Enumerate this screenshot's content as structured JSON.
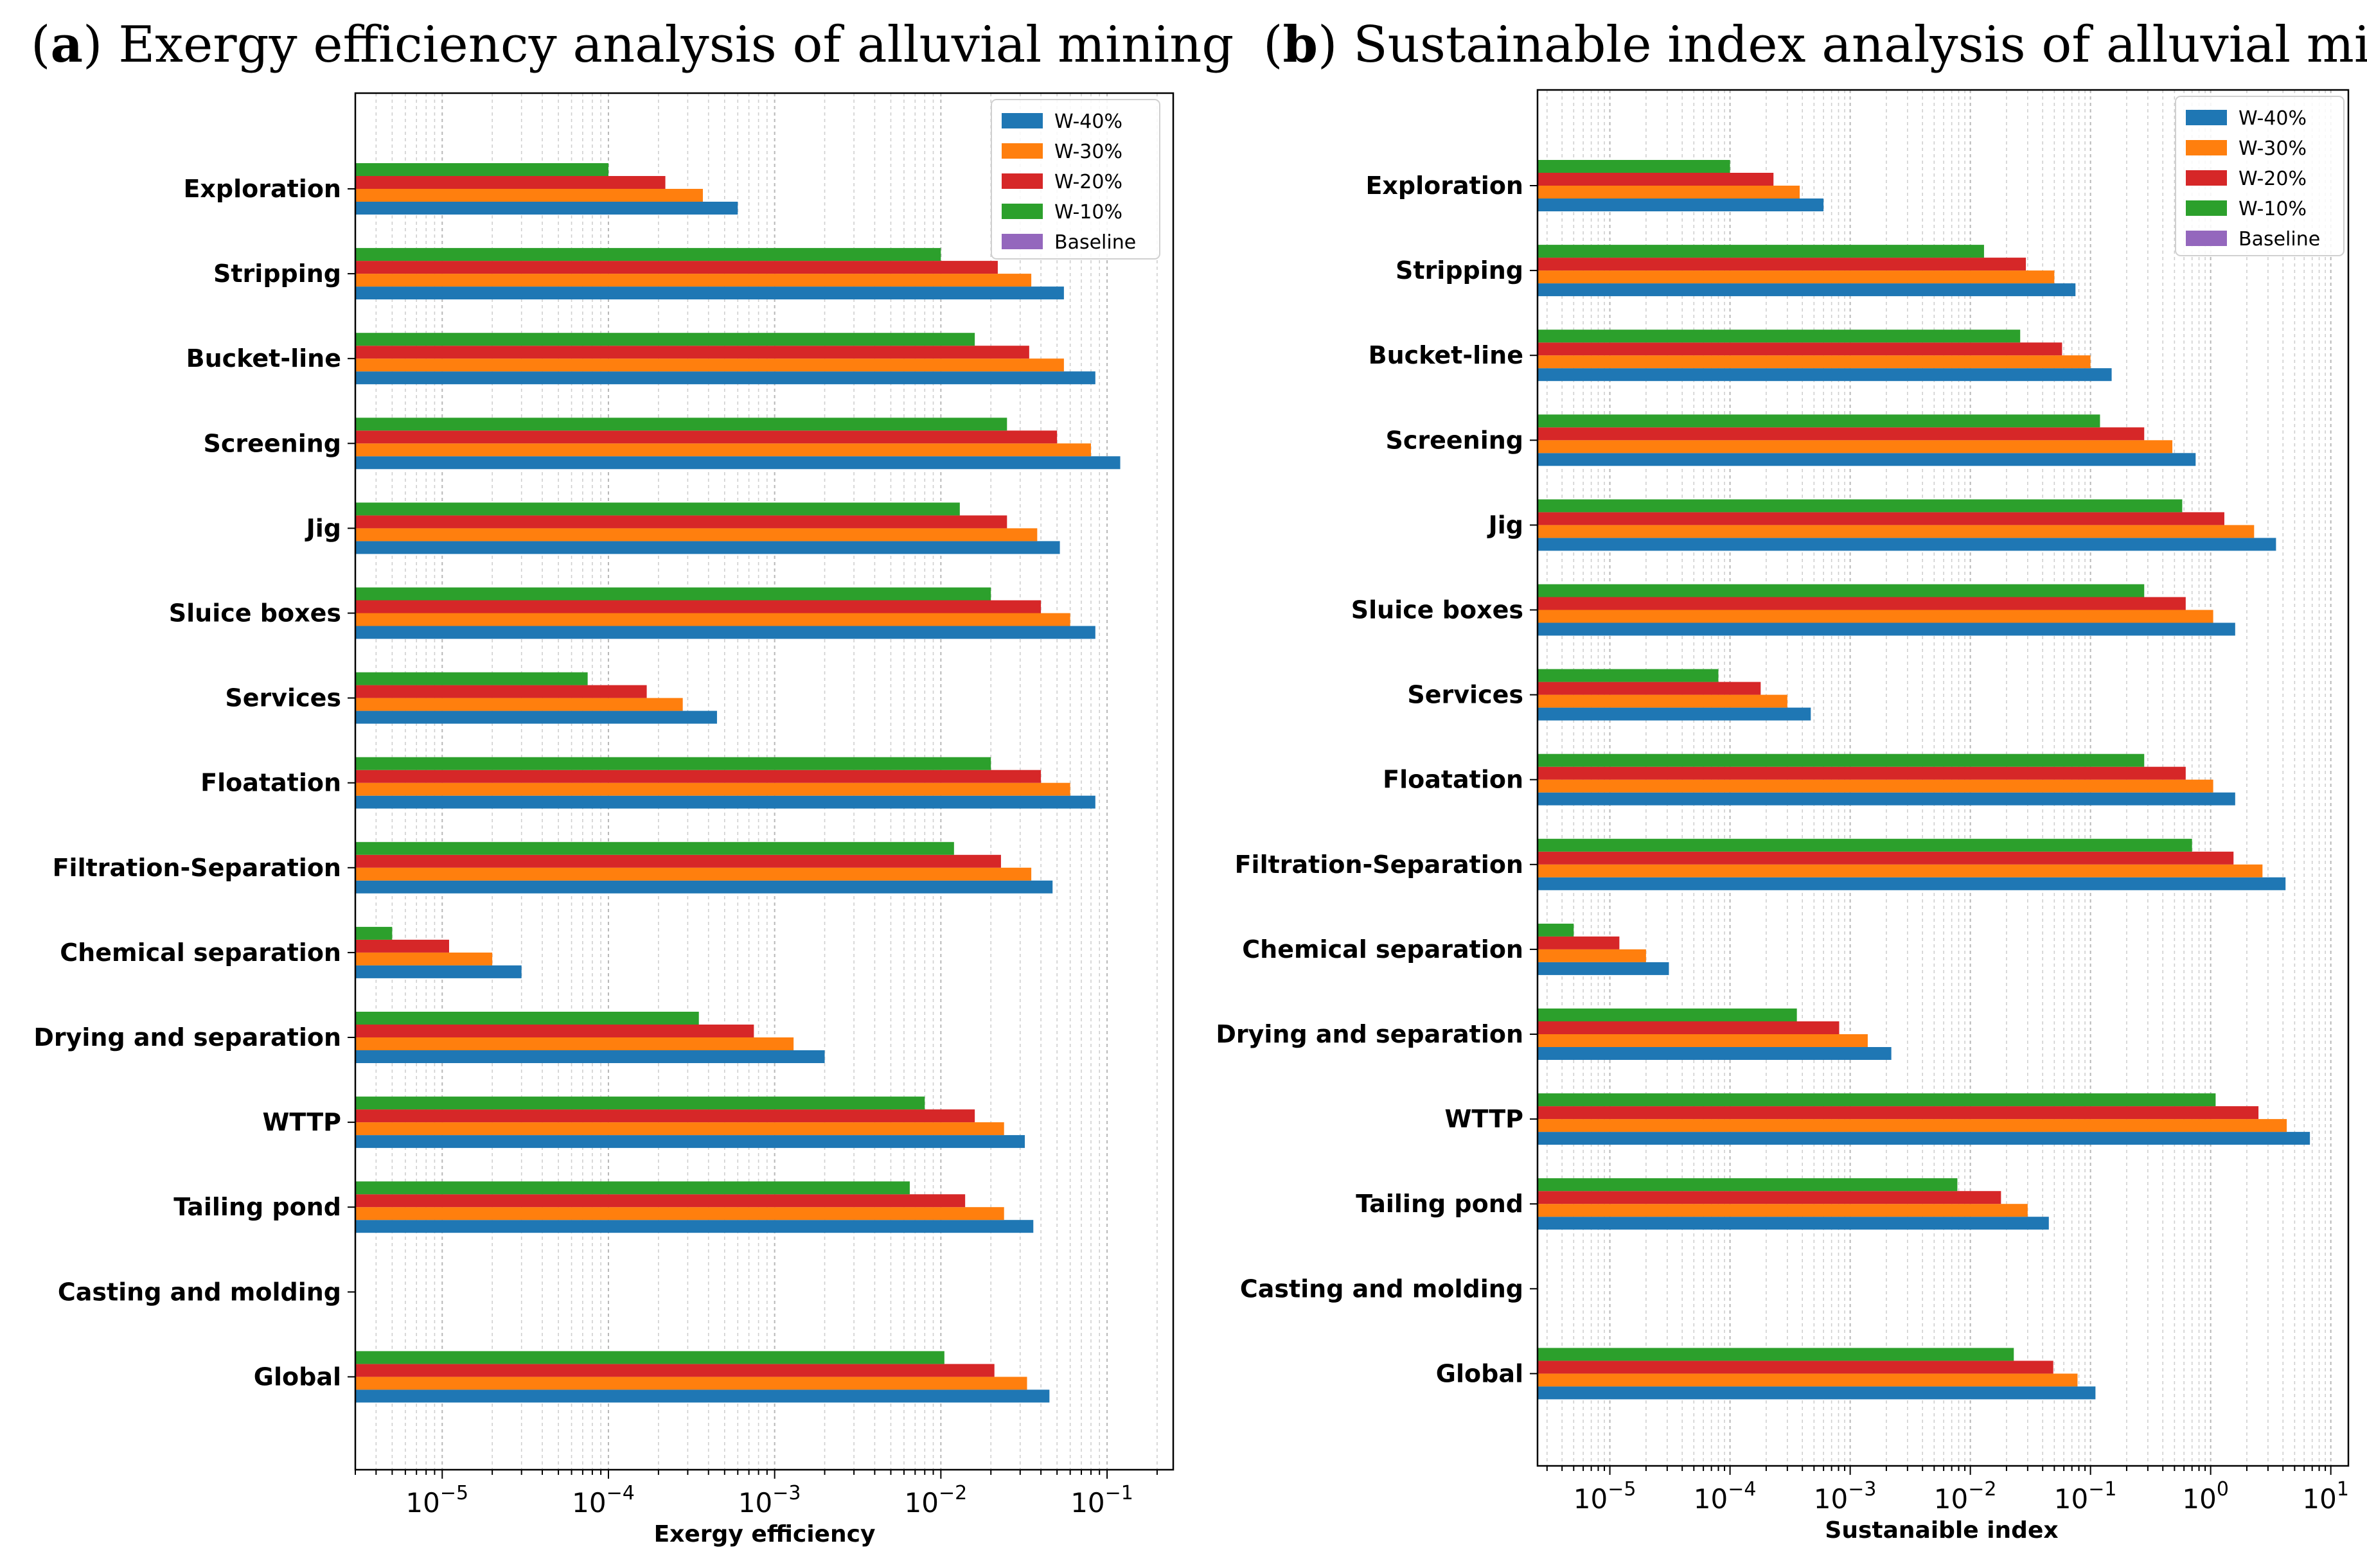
{
  "chart_data": [
    {
      "type": "bar",
      "orientation": "horizontal",
      "panel_label": "a",
      "title": "Exergy efficiency analysis of alluvial mining",
      "xlabel": "Exergy efficiency",
      "ylabel": "",
      "xscale": "log",
      "xlim": [
        3e-06,
        0.25
      ],
      "xtick_exponents": [
        -5,
        -4,
        -3,
        -2,
        -1
      ],
      "grid": "x minor and major, dotted vertical",
      "legend_position": "top-right",
      "categories": [
        "Exploration",
        "Stripping",
        "Bucket-line",
        "Screening",
        "Jig",
        "Sluice boxes",
        "Services",
        "Floatation",
        "Filtration-Separation",
        "Chemical separation",
        "Drying and separation",
        "WTTP",
        "Tailing pond",
        "Casting and molding",
        "Global"
      ],
      "series": [
        {
          "name": "W-40%",
          "color": "#1f77b4",
          "values": [
            0.0006,
            0.055,
            0.085,
            0.12,
            0.052,
            0.085,
            0.00045,
            0.085,
            0.047,
            3e-05,
            0.002,
            0.032,
            0.036,
            null,
            0.045
          ]
        },
        {
          "name": "W-30%",
          "color": "#ff7f0e",
          "values": [
            0.00037,
            0.035,
            0.055,
            0.08,
            0.038,
            0.06,
            0.00028,
            0.06,
            0.035,
            2e-05,
            0.0013,
            0.024,
            0.024,
            null,
            0.033
          ]
        },
        {
          "name": "W-20%",
          "color": "#d62728",
          "values": [
            0.00022,
            0.022,
            0.034,
            0.05,
            0.025,
            0.04,
            0.00017,
            0.04,
            0.023,
            1.1e-05,
            0.00075,
            0.016,
            0.014,
            null,
            0.021
          ]
        },
        {
          "name": "W-10%",
          "color": "#2ca02c",
          "values": [
            0.0001,
            0.01,
            0.016,
            0.025,
            0.013,
            0.02,
            7.5e-05,
            0.02,
            0.012,
            5e-06,
            0.00035,
            0.008,
            0.0065,
            null,
            0.0105
          ]
        },
        {
          "name": "Baseline",
          "color": "#9467bd",
          "values": [
            null,
            null,
            null,
            null,
            null,
            null,
            null,
            null,
            null,
            null,
            null,
            null,
            null,
            null,
            null
          ]
        }
      ]
    },
    {
      "type": "bar",
      "orientation": "horizontal",
      "panel_label": "b",
      "title": "Sustainable index analysis of alluvial mining",
      "xlabel": "Sustanaible index",
      "ylabel": "",
      "xscale": "log",
      "xlim": [
        2.5e-06,
        14
      ],
      "xtick_exponents": [
        -5,
        -4,
        -3,
        -2,
        -1,
        0,
        1
      ],
      "grid": "x minor and major, dotted vertical",
      "legend_position": "top-right",
      "categories": [
        "Exploration",
        "Stripping",
        "Bucket-line",
        "Screening",
        "Jig",
        "Sluice boxes",
        "Services",
        "Floatation",
        "Filtration-Separation",
        "Chemical separation",
        "Drying and separation",
        "WTTP",
        "Tailing pond",
        "Casting and molding",
        "Global"
      ],
      "series": [
        {
          "name": "W-40%",
          "color": "#1f77b4",
          "values": [
            0.0006,
            0.075,
            0.15,
            0.75,
            3.5,
            1.6,
            0.00047,
            1.6,
            4.2,
            3.1e-05,
            0.0022,
            6.7,
            0.045,
            null,
            0.11
          ]
        },
        {
          "name": "W-30%",
          "color": "#ff7f0e",
          "values": [
            0.00038,
            0.05,
            0.1,
            0.48,
            2.3,
            1.05,
            0.0003,
            1.05,
            2.7,
            2e-05,
            0.0014,
            4.3,
            0.03,
            null,
            0.078
          ]
        },
        {
          "name": "W-20%",
          "color": "#d62728",
          "values": [
            0.00023,
            0.029,
            0.058,
            0.28,
            1.3,
            0.62,
            0.00018,
            0.62,
            1.55,
            1.2e-05,
            0.00081,
            2.5,
            0.018,
            null,
            0.049
          ]
        },
        {
          "name": "W-10%",
          "color": "#2ca02c",
          "values": [
            0.0001,
            0.013,
            0.026,
            0.12,
            0.58,
            0.28,
            8e-05,
            0.28,
            0.7,
            5e-06,
            0.00036,
            1.1,
            0.0078,
            null,
            0.023
          ]
        },
        {
          "name": "Baseline",
          "color": "#9467bd",
          "values": [
            null,
            null,
            null,
            null,
            null,
            null,
            null,
            null,
            null,
            null,
            null,
            null,
            null,
            null,
            null
          ]
        }
      ]
    }
  ]
}
